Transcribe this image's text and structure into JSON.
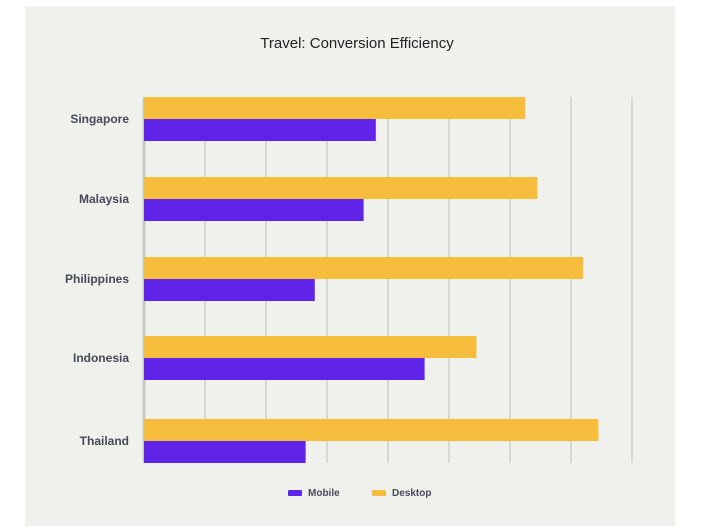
{
  "chart_data": {
    "type": "bar",
    "orientation": "horizontal",
    "title": "Travel: Conversion Efficiency",
    "xlabel": "",
    "ylabel": "",
    "categories": [
      "Singapore",
      "Malaysia",
      "Philippines",
      "Indonesia",
      "Thailand"
    ],
    "series": [
      {
        "name": "Desktop",
        "color": "#f6bd3d",
        "values": [
          6.25,
          6.45,
          7.2,
          5.45,
          7.45
        ]
      },
      {
        "name": "Mobile",
        "color": "#6023e8",
        "values": [
          3.8,
          3.6,
          2.8,
          4.6,
          2.65
        ]
      }
    ],
    "xlim": [
      0,
      8
    ],
    "grid": true,
    "legend": {
      "placement": "bottom",
      "items": [
        {
          "label": "Mobile",
          "color": "#6023e8"
        },
        {
          "label": "Desktop",
          "color": "#f6bd3d"
        }
      ]
    }
  }
}
